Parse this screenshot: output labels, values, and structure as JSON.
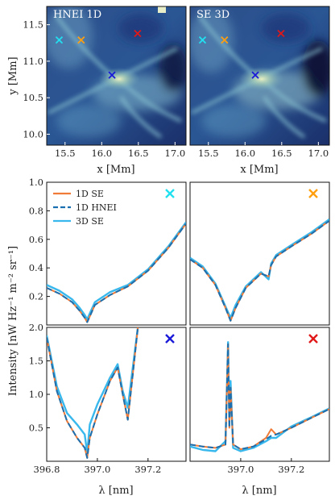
{
  "figure": {
    "top_panels": [
      {
        "title": "HNEI 1D"
      },
      {
        "title": "SE 3D"
      }
    ],
    "top_xlabel": "x [Mm]",
    "top_ylabel": "y [Mm]",
    "bottom_xlabel": "λ [nm]",
    "bottom_ylabel": "Intensity [nW Hz⁻¹ m⁻² sr⁻¹]"
  },
  "chart_data": [
    {
      "type": "heatmap",
      "title": "HNEI 1D",
      "xlabel": "x [Mm]",
      "ylabel": "y [Mm]",
      "xlim": [
        15.25,
        17.15
      ],
      "ylim": [
        9.85,
        11.75
      ],
      "xticks": [
        "15.5",
        "16.0",
        "16.5",
        "17.0"
      ],
      "yticks": [
        "10.0",
        "10.5",
        "11.0",
        "11.5"
      ],
      "markers": [
        {
          "x": 15.42,
          "y": 11.29,
          "color": "#22e0f0"
        },
        {
          "x": 15.72,
          "y": 11.29,
          "color": "#ff9f10"
        },
        {
          "x": 16.14,
          "y": 10.81,
          "color": "#1a1ad8"
        },
        {
          "x": 16.49,
          "y": 11.38,
          "color": "#e01818"
        }
      ]
    },
    {
      "type": "heatmap",
      "title": "SE 3D",
      "xlabel": "x [Mm]",
      "xlim": [
        15.25,
        17.15
      ],
      "ylim": [
        9.85,
        11.75
      ],
      "xticks": [
        "15.5",
        "16.0",
        "16.5",
        "17.0"
      ],
      "markers": [
        {
          "x": 15.42,
          "y": 11.29,
          "color": "#22e0f0"
        },
        {
          "x": 15.72,
          "y": 11.29,
          "color": "#ff9f10"
        },
        {
          "x": 16.14,
          "y": 10.81,
          "color": "#1a1ad8"
        },
        {
          "x": 16.49,
          "y": 11.38,
          "color": "#e01818"
        }
      ]
    },
    {
      "type": "line",
      "panel": "top-left",
      "marker_color": "#22e0f0",
      "xlim": [
        396.8,
        397.35
      ],
      "ylim": [
        0.0,
        1.0
      ],
      "yticks": [
        "0.2",
        "0.4",
        "0.6",
        "0.8",
        "1.0"
      ],
      "legend": "top-left",
      "series": [
        {
          "name": "1D SE",
          "color": "#f07a38",
          "style": "solid",
          "x": [
            396.8,
            396.85,
            396.9,
            396.93,
            396.95,
            396.96,
            396.97,
            396.99,
            397.05,
            397.12,
            397.2,
            397.28,
            397.35
          ],
          "y": [
            0.26,
            0.22,
            0.16,
            0.1,
            0.05,
            0.02,
            0.06,
            0.14,
            0.21,
            0.27,
            0.38,
            0.54,
            0.71
          ]
        },
        {
          "name": "1D HNEI",
          "color": "#1a6fb0",
          "style": "dashed",
          "x": [
            396.8,
            396.85,
            396.9,
            396.93,
            396.95,
            396.96,
            396.97,
            396.99,
            397.05,
            397.12,
            397.2,
            397.28,
            397.35
          ],
          "y": [
            0.26,
            0.22,
            0.16,
            0.1,
            0.05,
            0.02,
            0.06,
            0.14,
            0.21,
            0.27,
            0.38,
            0.54,
            0.71
          ]
        },
        {
          "name": "3D SE",
          "color": "#38b8ec",
          "style": "solid",
          "x": [
            396.8,
            396.85,
            396.9,
            396.93,
            396.95,
            396.96,
            396.97,
            396.99,
            397.05,
            397.12,
            397.2,
            397.28,
            397.35
          ],
          "y": [
            0.28,
            0.24,
            0.18,
            0.12,
            0.07,
            0.04,
            0.08,
            0.16,
            0.23,
            0.28,
            0.39,
            0.55,
            0.72
          ]
        }
      ]
    },
    {
      "type": "line",
      "panel": "top-right",
      "marker_color": "#ff9f10",
      "xlim": [
        396.8,
        397.35
      ],
      "ylim": [
        0.0,
        1.0
      ],
      "series": [
        {
          "name": "1D SE",
          "color": "#f07a38",
          "style": "solid",
          "x": [
            396.8,
            396.85,
            396.9,
            396.94,
            396.96,
            396.98,
            397.02,
            397.08,
            397.11,
            397.12,
            397.14,
            397.2,
            397.28,
            397.35
          ],
          "y": [
            0.46,
            0.4,
            0.28,
            0.12,
            0.03,
            0.12,
            0.26,
            0.36,
            0.34,
            0.42,
            0.48,
            0.55,
            0.64,
            0.73
          ]
        },
        {
          "name": "1D HNEI",
          "color": "#1a6fb0",
          "style": "dashed",
          "x": [
            396.8,
            396.85,
            396.9,
            396.94,
            396.96,
            396.98,
            397.02,
            397.08,
            397.11,
            397.12,
            397.14,
            397.2,
            397.28,
            397.35
          ],
          "y": [
            0.46,
            0.4,
            0.28,
            0.12,
            0.03,
            0.12,
            0.26,
            0.36,
            0.34,
            0.42,
            0.48,
            0.55,
            0.64,
            0.73
          ]
        },
        {
          "name": "3D SE",
          "color": "#38b8ec",
          "style": "solid",
          "x": [
            396.8,
            396.85,
            396.9,
            396.94,
            396.96,
            396.98,
            397.02,
            397.08,
            397.11,
            397.12,
            397.14,
            397.2,
            397.28,
            397.35
          ],
          "y": [
            0.47,
            0.41,
            0.29,
            0.13,
            0.05,
            0.14,
            0.27,
            0.37,
            0.32,
            0.43,
            0.49,
            0.56,
            0.65,
            0.74
          ]
        }
      ]
    },
    {
      "type": "line",
      "panel": "bottom-left",
      "marker_color": "#1a1ad8",
      "xlim": [
        396.8,
        397.35
      ],
      "ylim": [
        0.0,
        2.0
      ],
      "yticks": [
        "0.5",
        "1.0",
        "1.5",
        "2.0"
      ],
      "xticks": [
        "396.8",
        "397.0",
        "397.2"
      ],
      "series": [
        {
          "name": "1D SE",
          "color": "#f07a38",
          "style": "solid",
          "x": [
            396.8,
            396.84,
            396.88,
            396.92,
            396.95,
            396.96,
            396.97,
            397.0,
            397.05,
            397.08,
            397.1,
            397.12,
            397.14,
            397.16
          ],
          "y": [
            1.85,
            1.05,
            0.6,
            0.35,
            0.2,
            0.05,
            0.35,
            0.7,
            1.2,
            1.4,
            1.0,
            0.62,
            1.3,
            2.0
          ]
        },
        {
          "name": "1D HNEI",
          "color": "#1a6fb0",
          "style": "dashed",
          "x": [
            396.8,
            396.84,
            396.88,
            396.92,
            396.95,
            396.96,
            396.97,
            397.0,
            397.05,
            397.08,
            397.1,
            397.12,
            397.14,
            397.16
          ],
          "y": [
            1.85,
            1.05,
            0.6,
            0.35,
            0.2,
            0.05,
            0.35,
            0.7,
            1.2,
            1.4,
            1.0,
            0.62,
            1.3,
            2.0
          ]
        },
        {
          "name": "3D SE",
          "color": "#38b8ec",
          "style": "solid",
          "x": [
            396.8,
            396.84,
            396.88,
            396.92,
            396.95,
            396.96,
            396.97,
            397.0,
            397.05,
            397.08,
            397.1,
            397.12,
            397.14,
            397.16
          ],
          "y": [
            1.88,
            1.12,
            0.72,
            0.55,
            0.4,
            0.12,
            0.55,
            0.85,
            1.25,
            1.45,
            1.05,
            0.8,
            1.4,
            2.0
          ]
        }
      ]
    },
    {
      "type": "line",
      "panel": "bottom-right",
      "marker_color": "#e01818",
      "xlim": [
        396.8,
        397.35
      ],
      "ylim": [
        0.0,
        2.0
      ],
      "xticks": [
        "397.0",
        "397.2"
      ],
      "series": [
        {
          "name": "1D SE",
          "color": "#f07a38",
          "style": "solid",
          "x": [
            396.8,
            396.85,
            396.9,
            396.94,
            396.95,
            396.955,
            396.96,
            396.97,
            397.0,
            397.05,
            397.1,
            397.12,
            397.14,
            397.2,
            397.28,
            397.35
          ],
          "y": [
            0.25,
            0.22,
            0.2,
            0.25,
            1.75,
            0.5,
            1.1,
            0.25,
            0.18,
            0.22,
            0.35,
            0.48,
            0.4,
            0.5,
            0.65,
            0.78
          ]
        },
        {
          "name": "1D HNEI",
          "color": "#1a6fb0",
          "style": "dashed",
          "x": [
            396.8,
            396.85,
            396.9,
            396.94,
            396.95,
            396.955,
            396.96,
            396.97,
            397.0,
            397.05,
            397.1,
            397.12,
            397.14,
            397.2,
            397.28,
            397.35
          ],
          "y": [
            0.25,
            0.22,
            0.2,
            0.25,
            1.75,
            0.5,
            1.1,
            0.25,
            0.18,
            0.22,
            0.33,
            0.38,
            0.4,
            0.5,
            0.65,
            0.78
          ]
        },
        {
          "name": "3D SE",
          "color": "#38b8ec",
          "style": "solid",
          "x": [
            396.8,
            396.85,
            396.9,
            396.94,
            396.95,
            396.955,
            396.96,
            396.97,
            397.0,
            397.05,
            397.1,
            397.12,
            397.14,
            397.2,
            397.28,
            397.35
          ],
          "y": [
            0.22,
            0.17,
            0.15,
            0.3,
            1.78,
            0.6,
            1.2,
            0.2,
            0.15,
            0.2,
            0.3,
            0.35,
            0.35,
            0.52,
            0.66,
            0.79
          ]
        }
      ]
    }
  ]
}
